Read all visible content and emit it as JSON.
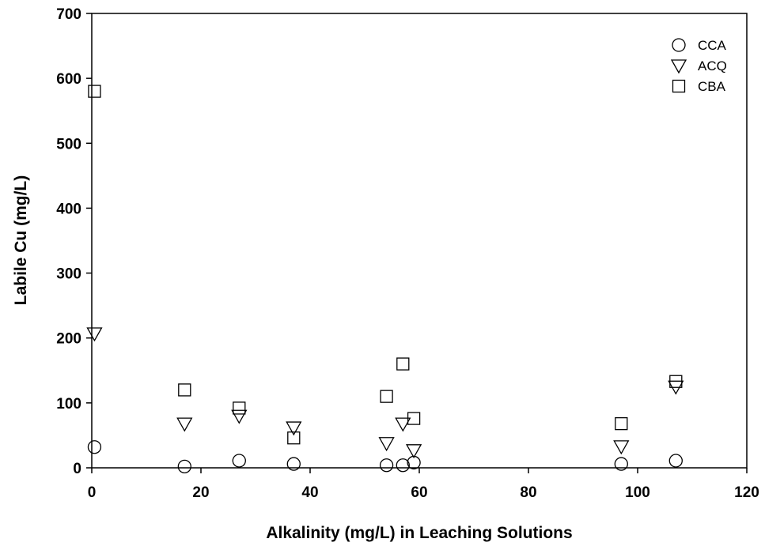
{
  "chart_data": {
    "type": "scatter",
    "title": "",
    "xlabel": "Alkalinity (mg/L) in Leaching Solutions",
    "ylabel": "Labile Cu (mg/L)",
    "xlim": [
      0,
      120
    ],
    "ylim": [
      0,
      700
    ],
    "xticks": [
      0,
      20,
      40,
      60,
      80,
      100,
      120
    ],
    "yticks": [
      0,
      100,
      200,
      300,
      400,
      500,
      600,
      700
    ],
    "grid": false,
    "legend": "top-right",
    "series": [
      {
        "name": "CCA",
        "marker": "circle",
        "points": [
          {
            "x": 0.5,
            "y": 32
          },
          {
            "x": 17,
            "y": 2
          },
          {
            "x": 27,
            "y": 11
          },
          {
            "x": 37,
            "y": 6
          },
          {
            "x": 54,
            "y": 4
          },
          {
            "x": 57,
            "y": 4
          },
          {
            "x": 59,
            "y": 8
          },
          {
            "x": 97,
            "y": 6
          },
          {
            "x": 107,
            "y": 11
          }
        ]
      },
      {
        "name": "ACQ",
        "marker": "triangle-down",
        "points": [
          {
            "x": 0.5,
            "y": 207
          },
          {
            "x": 17,
            "y": 68
          },
          {
            "x": 27,
            "y": 80
          },
          {
            "x": 37,
            "y": 62
          },
          {
            "x": 54,
            "y": 38
          },
          {
            "x": 57,
            "y": 68
          },
          {
            "x": 59,
            "y": 27
          },
          {
            "x": 97,
            "y": 33
          },
          {
            "x": 107,
            "y": 125
          }
        ]
      },
      {
        "name": "CBA",
        "marker": "square",
        "points": [
          {
            "x": 0.5,
            "y": 580
          },
          {
            "x": 17,
            "y": 120
          },
          {
            "x": 27,
            "y": 92
          },
          {
            "x": 37,
            "y": 46
          },
          {
            "x": 54,
            "y": 110
          },
          {
            "x": 57,
            "y": 160
          },
          {
            "x": 59,
            "y": 76
          },
          {
            "x": 97,
            "y": 68
          },
          {
            "x": 107,
            "y": 133
          }
        ]
      }
    ]
  }
}
